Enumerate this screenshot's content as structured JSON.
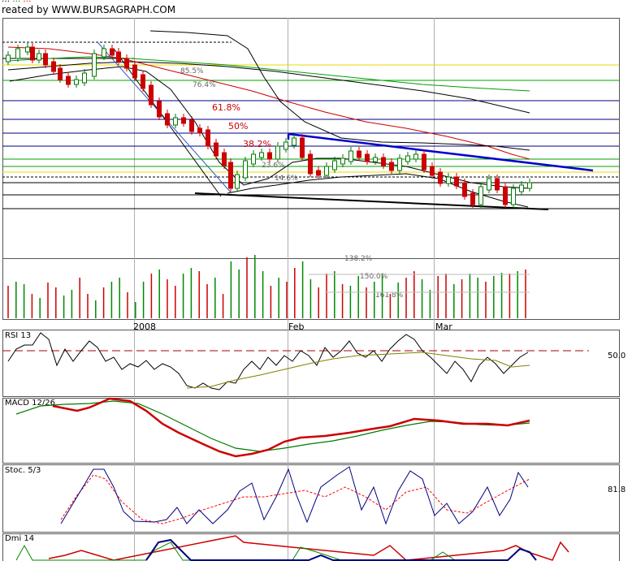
{
  "header": {
    "meta_left": "…",
    "meta_mid": "…",
    "meta_right": "…",
    "credit": "reated by WWW.BURSAGRAPH.COM"
  },
  "chart_data": [
    {
      "type": "candlestick",
      "panel": "price",
      "x_labels": [
        "2008",
        "Feb",
        "Mar"
      ],
      "fib_retracements": [
        "85.5%",
        "76.4%",
        "61.8%",
        "50%",
        "38.2%",
        "23.6%",
        "14.6%"
      ],
      "fib_extensions": [
        "138.2%",
        "150.0%",
        "161.8%"
      ],
      "colors": {
        "up": "#007a00",
        "down": "#cc0000",
        "channel": "#0000cc",
        "fib": "#cc0000"
      }
    },
    {
      "type": "bar",
      "panel": "volume",
      "colors": {
        "up": "#008800",
        "down": "#cc0000"
      }
    },
    {
      "type": "line",
      "panel": "RSI",
      "title": "RSI 13",
      "last_value": "50.0",
      "colors": {
        "rsi": "#000000",
        "signal": "#808000",
        "level": "#aa0000"
      }
    },
    {
      "type": "line",
      "panel": "MACD",
      "title": "MACD 12/26",
      "colors": {
        "macd": "#cc0000",
        "signal": "#007a00"
      }
    },
    {
      "type": "line",
      "panel": "Stochastic",
      "title": "Stoc. 5/3",
      "last_value": "81.8",
      "colors": {
        "k": "#000080",
        "d": "#ff0000"
      }
    },
    {
      "type": "line",
      "panel": "DMI",
      "title": "Dmi 14",
      "colors": {
        "plus": "#008800",
        "minus": "#cc0000",
        "adx": "#000080"
      }
    }
  ]
}
